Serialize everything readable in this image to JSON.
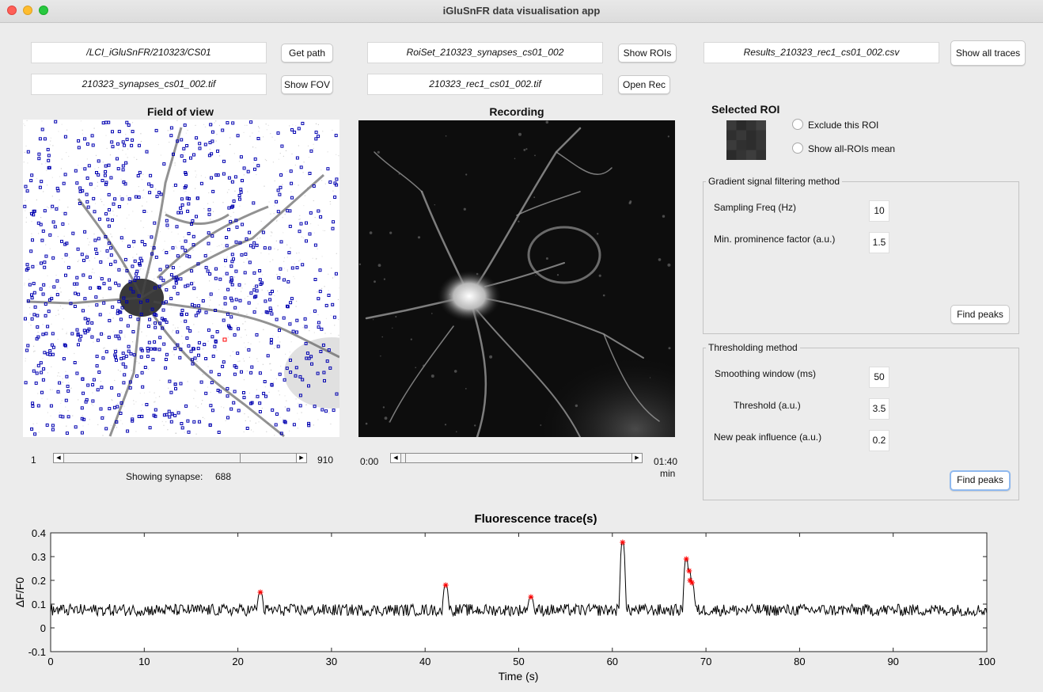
{
  "window": {
    "title": "iGluSnFR data visualisation app"
  },
  "top": {
    "path_field": "/LCI_iGluSnFR/210323/CS01",
    "get_path": "Get path",
    "fov_file": "210323_synapses_cs01_002.tif",
    "show_fov": "Show FOV",
    "roiset_field": "RoiSet_210323_synapses_cs01_002",
    "show_rois": "Show ROIs",
    "rec_file": "210323_rec1_cs01_002.tif",
    "open_rec": "Open Rec",
    "results_field": "Results_210323_rec1_cs01_002.csv",
    "show_all_traces": "Show all traces"
  },
  "fov": {
    "title": "Field of view",
    "slider_min": "1",
    "slider_max": "910",
    "slider_position": 0.756,
    "showing_label": "Showing synapse:",
    "showing_value": "688"
  },
  "recording": {
    "title": "Recording",
    "time_start": "0:00",
    "time_end": "01:40",
    "time_unit": "min",
    "slider_position": 0.02
  },
  "roi": {
    "title": "Selected ROI",
    "exclude_label": "Exclude this ROI",
    "show_mean_label": "Show all-ROIs mean"
  },
  "gradient": {
    "title": "Gradient signal filtering method",
    "sampling_label": "Sampling Freq (Hz)",
    "sampling_value": "10",
    "prominence_label": "Min. prominence factor (a.u.)",
    "prominence_value": "1.5",
    "find_peaks": "Find peaks"
  },
  "threshold": {
    "title": "Thresholding method",
    "smoothing_label": "Smoothing window (ms)",
    "smoothing_value": "50",
    "threshold_label": "Threshold (a.u.)",
    "threshold_value": "3.5",
    "influence_label": "New peak influence (a.u.)",
    "influence_value": "0.2",
    "find_peaks": "Find peaks"
  },
  "chart_data": {
    "type": "line",
    "title": "Fluorescence trace(s)",
    "xlabel": "Time (s)",
    "ylabel": "ΔF/F0",
    "xlim": [
      0,
      100
    ],
    "ylim": [
      -0.1,
      0.4
    ],
    "xticks": [
      "0",
      "10",
      "20",
      "30",
      "40",
      "50",
      "60",
      "70",
      "80",
      "90",
      "100"
    ],
    "yticks": [
      "-0.1",
      "0",
      "0.1",
      "0.2",
      "0.3",
      "0.4"
    ],
    "series": [
      {
        "color": "#000000",
        "baseline": 0.075,
        "noise": 0.025,
        "events": [
          {
            "x": 22.4,
            "y": 0.15
          },
          {
            "x": 42.2,
            "y": 0.18
          },
          {
            "x": 51.3,
            "y": 0.13
          },
          {
            "x": 61.1,
            "y": 0.36
          },
          {
            "x": 67.9,
            "y": 0.29
          },
          {
            "x": 68.2,
            "y": 0.24
          },
          {
            "x": 68.3,
            "y": 0.2
          },
          {
            "x": 68.5,
            "y": 0.19
          }
        ]
      }
    ],
    "peak_markers": [
      {
        "x": 22.4,
        "y": 0.15
      },
      {
        "x": 42.2,
        "y": 0.18
      },
      {
        "x": 51.3,
        "y": 0.13
      },
      {
        "x": 61.1,
        "y": 0.36
      },
      {
        "x": 67.9,
        "y": 0.29
      },
      {
        "x": 68.2,
        "y": 0.24
      },
      {
        "x": 68.3,
        "y": 0.2
      },
      {
        "x": 68.5,
        "y": 0.19
      }
    ],
    "marker_color": "#ff0000",
    "grid": false
  }
}
